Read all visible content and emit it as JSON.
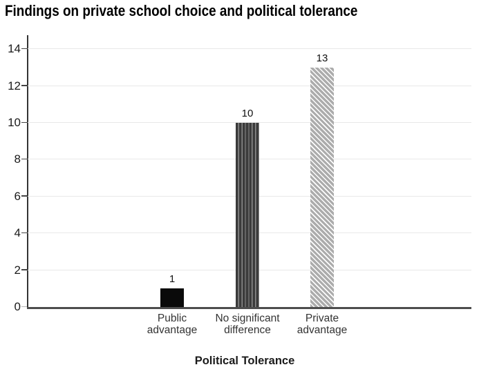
{
  "chart_data": {
    "type": "bar",
    "title": "Findings on private school choice and political tolerance",
    "xlabel": "Political Tolerance",
    "ylabel": "",
    "categories": [
      "Public advantage",
      "No significant difference",
      "Private advantage"
    ],
    "values": [
      1,
      10,
      13
    ],
    "value_labels": [
      "1",
      "10",
      "13"
    ],
    "yticks": [
      0,
      2,
      4,
      6,
      8,
      10,
      12,
      14
    ],
    "ylim": [
      0,
      14.8
    ],
    "grid": true,
    "legend": "none",
    "bar_patterns": [
      "solid-black",
      "vertical-stripes",
      "diagonal-stripes"
    ],
    "colors": {
      "bar_solid": "#0a0a0a",
      "stripe_dark": "#3b3b3b",
      "stripe_light": "#8c8c8c",
      "diag_gray": "#acacac",
      "diag_stripe": "#ffffff",
      "gridline": "#e8e8e8",
      "baseline": "#4d4d4d",
      "axis_line": "#333333",
      "tick_mark": "#444444",
      "zero_tick_mark": "#b5b5b5",
      "tick_label": "#1a1a1a",
      "category_label": "#333333",
      "title_color": "#000000"
    }
  }
}
